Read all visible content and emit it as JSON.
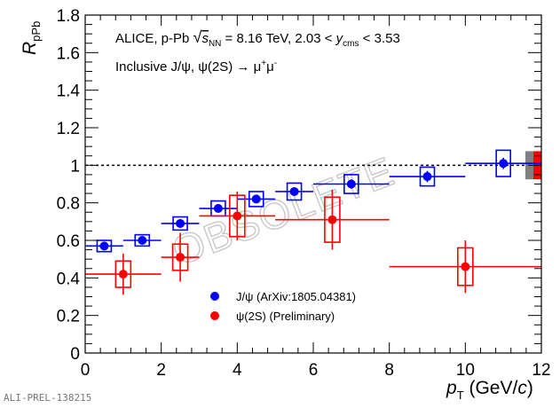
{
  "chart_data": {
    "type": "scatter",
    "xlim": [
      0,
      12
    ],
    "ylim": [
      0,
      1.8
    ],
    "xticks": [
      "0",
      "2",
      "4",
      "6",
      "8",
      "10",
      "12"
    ],
    "yticks": [
      "0",
      "0.2",
      "0.4",
      "0.6",
      "0.8",
      "1",
      "1.2",
      "1.4",
      "1.6",
      "1.8"
    ],
    "xlabel": {
      "main": "p",
      "sub": "T",
      "unit": " (GeV/",
      "italic_unit": "c",
      "close": ")"
    },
    "ylabel": {
      "main": "R",
      "sub": "pPb"
    },
    "reference_line": 1,
    "annotation": {
      "line1_a": "ALICE, p-Pb ",
      "line1_sqrt": "s",
      "line1_sqrt_sub": "NN",
      "line1_b": " = 8.16 TeV, 2.03 < ",
      "line1_y": "y",
      "line1_y_sub": "cms",
      "line1_c": " < 3.53",
      "line2_a": "Inclusive J/ψ, ψ(2S) → μ",
      "line2_sup1": "+",
      "line2_mu": "μ",
      "line2_sup2": "-"
    },
    "watermark": "OBSOLETE",
    "global_uncertainty": {
      "jpsi": {
        "color": "#808080",
        "low": 0.925,
        "high": 1.075
      },
      "psi2s": {
        "color": "#ff0000",
        "low": 0.925,
        "high": 1.075
      }
    },
    "series": [
      {
        "name": "J/ψ (ArXiv:1805.04381)",
        "color": "#0000ff",
        "points": [
          {
            "x": 0.5,
            "xerr": 0.5,
            "y": 0.57,
            "stat": 0.02,
            "sys": 0.03
          },
          {
            "x": 1.5,
            "xerr": 0.5,
            "y": 0.6,
            "stat": 0.02,
            "sys": 0.03
          },
          {
            "x": 2.5,
            "xerr": 0.5,
            "y": 0.69,
            "stat": 0.02,
            "sys": 0.035
          },
          {
            "x": 3.5,
            "xerr": 0.5,
            "y": 0.77,
            "stat": 0.02,
            "sys": 0.04
          },
          {
            "x": 4.5,
            "xerr": 0.5,
            "y": 0.82,
            "stat": 0.02,
            "sys": 0.04
          },
          {
            "x": 5.5,
            "xerr": 0.5,
            "y": 0.86,
            "stat": 0.02,
            "sys": 0.045
          },
          {
            "x": 7.0,
            "xerr": 1.0,
            "y": 0.9,
            "stat": 0.025,
            "sys": 0.05
          },
          {
            "x": 9.0,
            "xerr": 1.0,
            "y": 0.94,
            "stat": 0.03,
            "sys": 0.05
          },
          {
            "x": 11.0,
            "xerr": 1.0,
            "y": 1.01,
            "stat": 0.03,
            "sys": 0.07
          }
        ]
      },
      {
        "name": "ψ(2S) (Preliminary)",
        "color": "#ff0000",
        "points": [
          {
            "x": 1.0,
            "xerr": 1.0,
            "y": 0.42,
            "stat": 0.11,
            "sys": 0.07
          },
          {
            "x": 2.5,
            "xerr": 0.5,
            "y": 0.51,
            "stat": 0.13,
            "sys": 0.07
          },
          {
            "x": 4.0,
            "xerr": 1.0,
            "y": 0.73,
            "stat": 0.13,
            "sys": 0.11
          },
          {
            "x": 6.5,
            "xerr": 1.5,
            "y": 0.71,
            "stat": 0.16,
            "sys": 0.12
          },
          {
            "x": 10.0,
            "xerr": 2.0,
            "y": 0.46,
            "stat": 0.14,
            "sys": 0.1
          }
        ]
      }
    ]
  },
  "footer": "ALI-PREL-138215"
}
